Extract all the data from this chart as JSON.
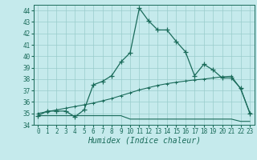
{
  "xlabel": "Humidex (Indice chaleur)",
  "x": [
    0,
    1,
    2,
    3,
    4,
    5,
    6,
    7,
    8,
    9,
    10,
    11,
    12,
    13,
    14,
    15,
    16,
    17,
    18,
    19,
    20,
    21,
    22,
    23
  ],
  "line1": [
    34.8,
    35.2,
    35.2,
    35.2,
    34.7,
    35.3,
    37.5,
    37.8,
    38.3,
    39.5,
    40.3,
    44.2,
    43.1,
    42.3,
    42.3,
    41.3,
    40.4,
    38.3,
    39.3,
    38.8,
    38.1,
    38.1,
    37.2,
    35.0
  ],
  "line2": [
    35.0,
    35.15,
    35.3,
    35.45,
    35.6,
    35.75,
    35.9,
    36.1,
    36.3,
    36.55,
    36.8,
    37.05,
    37.25,
    37.45,
    37.6,
    37.72,
    37.83,
    37.93,
    38.0,
    38.1,
    38.2,
    38.25,
    37.15,
    35.05
  ],
  "line3": [
    34.8,
    34.8,
    34.8,
    34.8,
    34.8,
    34.8,
    34.8,
    34.8,
    34.8,
    34.8,
    34.5,
    34.5,
    34.5,
    34.5,
    34.5,
    34.5,
    34.5,
    34.5,
    34.5,
    34.5,
    34.5,
    34.5,
    34.3,
    34.3
  ],
  "color": "#1a6b5a",
  "bg_color": "#c5eaec",
  "grid_color": "#99cccc",
  "ylim": [
    34,
    44.5
  ],
  "xlim": [
    -0.5,
    23.5
  ],
  "yticks": [
    34,
    35,
    36,
    37,
    38,
    39,
    40,
    41,
    42,
    43,
    44
  ],
  "xticks": [
    0,
    1,
    2,
    3,
    4,
    5,
    6,
    7,
    8,
    9,
    10,
    11,
    12,
    13,
    14,
    15,
    16,
    17,
    18,
    19,
    20,
    21,
    22,
    23
  ],
  "tick_fontsize": 5.5,
  "xlabel_fontsize": 7.0
}
